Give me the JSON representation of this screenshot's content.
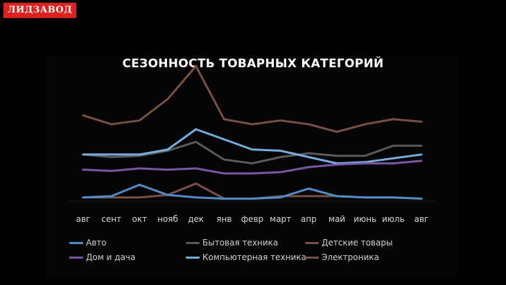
{
  "logo": {
    "text": "ЛИДЗАВОД",
    "color": "#e0201c"
  },
  "chart_data": {
    "type": "line",
    "title": "СЕЗОННОСТЬ ТОВАРНЫХ КАТЕГОРИЙ",
    "xlabel": "",
    "ylabel": "",
    "ylim": [
      0,
      100
    ],
    "grid": false,
    "legend_placement": "bottom",
    "categories": [
      "авг",
      "сент",
      "окт",
      "нояб",
      "дек",
      "янв",
      "февр",
      "март",
      "апр",
      "май",
      "июнь",
      "июль",
      "авг"
    ],
    "series": [
      {
        "name": "Авто",
        "color": "#4a8fd0",
        "values": [
          4,
          5,
          14,
          6,
          4,
          3,
          3,
          4,
          11,
          5,
          4,
          4,
          3
        ]
      },
      {
        "name": "Бытовая техника",
        "color": "#5a5a5a",
        "values": [
          38,
          36,
          37,
          41,
          48,
          34,
          31,
          36,
          39,
          37,
          37,
          45,
          45
        ]
      },
      {
        "name": "Детские товары",
        "color": "#7a5040",
        "values": [
          4,
          4,
          4,
          6,
          15,
          3,
          3,
          5,
          5,
          5,
          4,
          4,
          3
        ]
      },
      {
        "name": "Дом и дача",
        "color": "#7a55a8",
        "values": [
          26,
          25,
          27,
          26,
          27,
          23,
          23,
          24,
          28,
          30,
          31,
          31,
          33
        ]
      },
      {
        "name": "Компьютерная техника",
        "color": "#6fb1e0",
        "values": [
          38,
          38,
          38,
          42,
          58,
          50,
          42,
          41,
          36,
          31,
          32,
          35,
          38
        ]
      },
      {
        "name": "Электроника",
        "color": "#7a5040",
        "values": [
          69,
          62,
          65,
          82,
          108,
          66,
          62,
          65,
          62,
          56,
          62,
          66,
          64
        ]
      }
    ]
  }
}
